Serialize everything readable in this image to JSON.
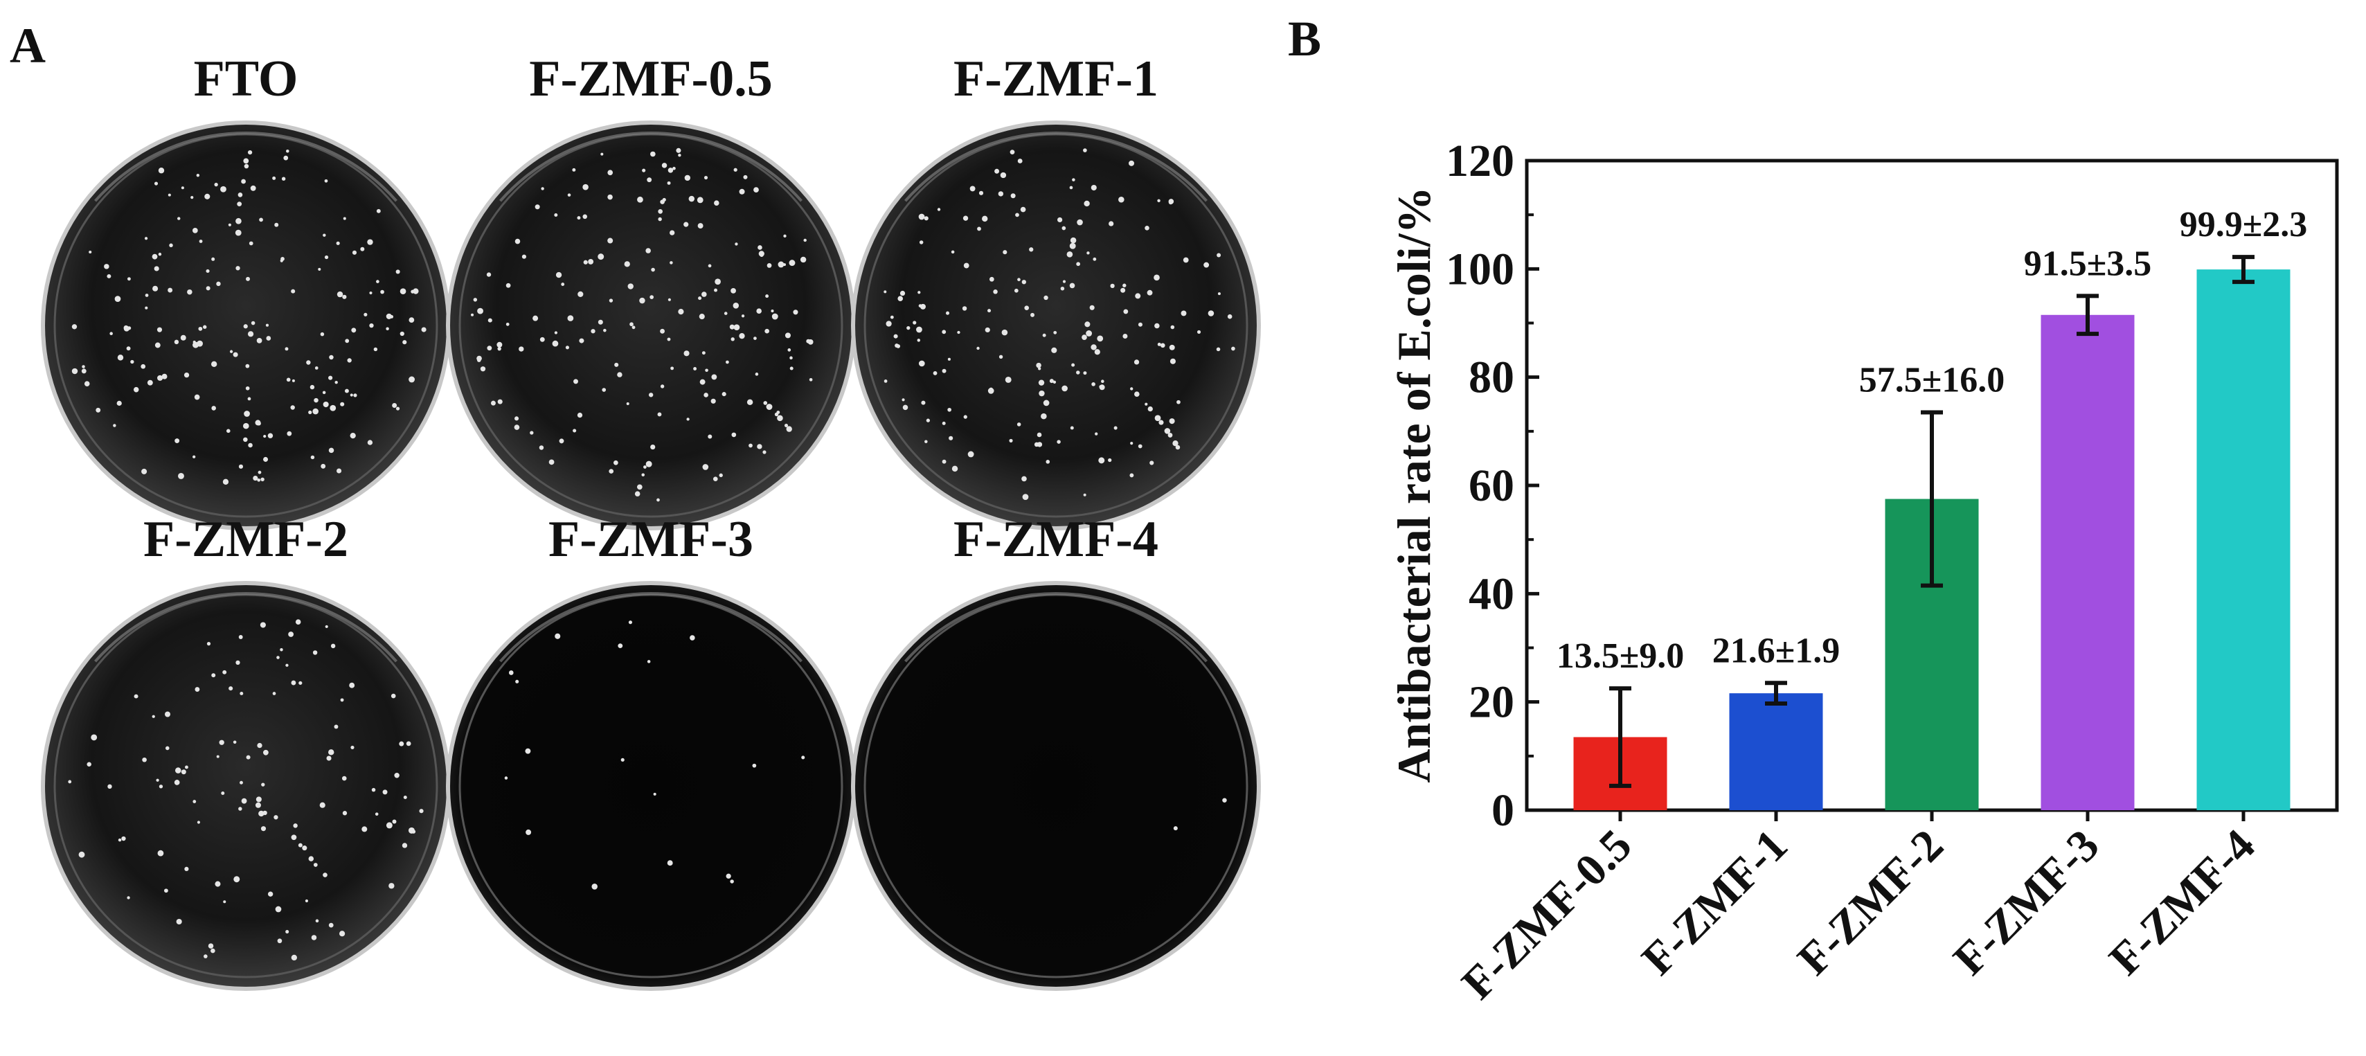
{
  "panel_a": {
    "letter": "A",
    "plates": [
      {
        "label": "FTO",
        "growth": "heavy"
      },
      {
        "label": "F-ZMF-0.5",
        "growth": "heavy"
      },
      {
        "label": "F-ZMF-1",
        "growth": "heavy"
      },
      {
        "label": "F-ZMF-2",
        "growth": "moderate"
      },
      {
        "label": "F-ZMF-3",
        "growth": "sparse"
      },
      {
        "label": "F-ZMF-4",
        "growth": "none"
      }
    ]
  },
  "panel_b": {
    "letter": "B"
  },
  "chart_data": {
    "type": "bar",
    "title": "",
    "xlabel": "",
    "ylabel": "Antibacterial rate of E.coli/%",
    "ylim": [
      0,
      120
    ],
    "yticks": [
      0,
      20,
      40,
      60,
      80,
      100,
      120
    ],
    "categories": [
      "F-ZMF-0.5",
      "F-ZMF-1",
      "F-ZMF-2",
      "F-ZMF-3",
      "F-ZMF-4"
    ],
    "values": [
      13.5,
      21.6,
      57.5,
      91.5,
      99.9
    ],
    "errors": [
      9.0,
      1.9,
      16.0,
      3.5,
      2.3
    ],
    "data_labels": [
      "13.5±9.0",
      "21.6±1.9",
      "57.5±16.0",
      "91.5±3.5",
      "99.9±2.3"
    ],
    "colors": [
      "#e8231d",
      "#1c4fd0",
      "#16955a",
      "#a14fe0",
      "#22c9c6"
    ],
    "grid": false,
    "legend": "none"
  }
}
